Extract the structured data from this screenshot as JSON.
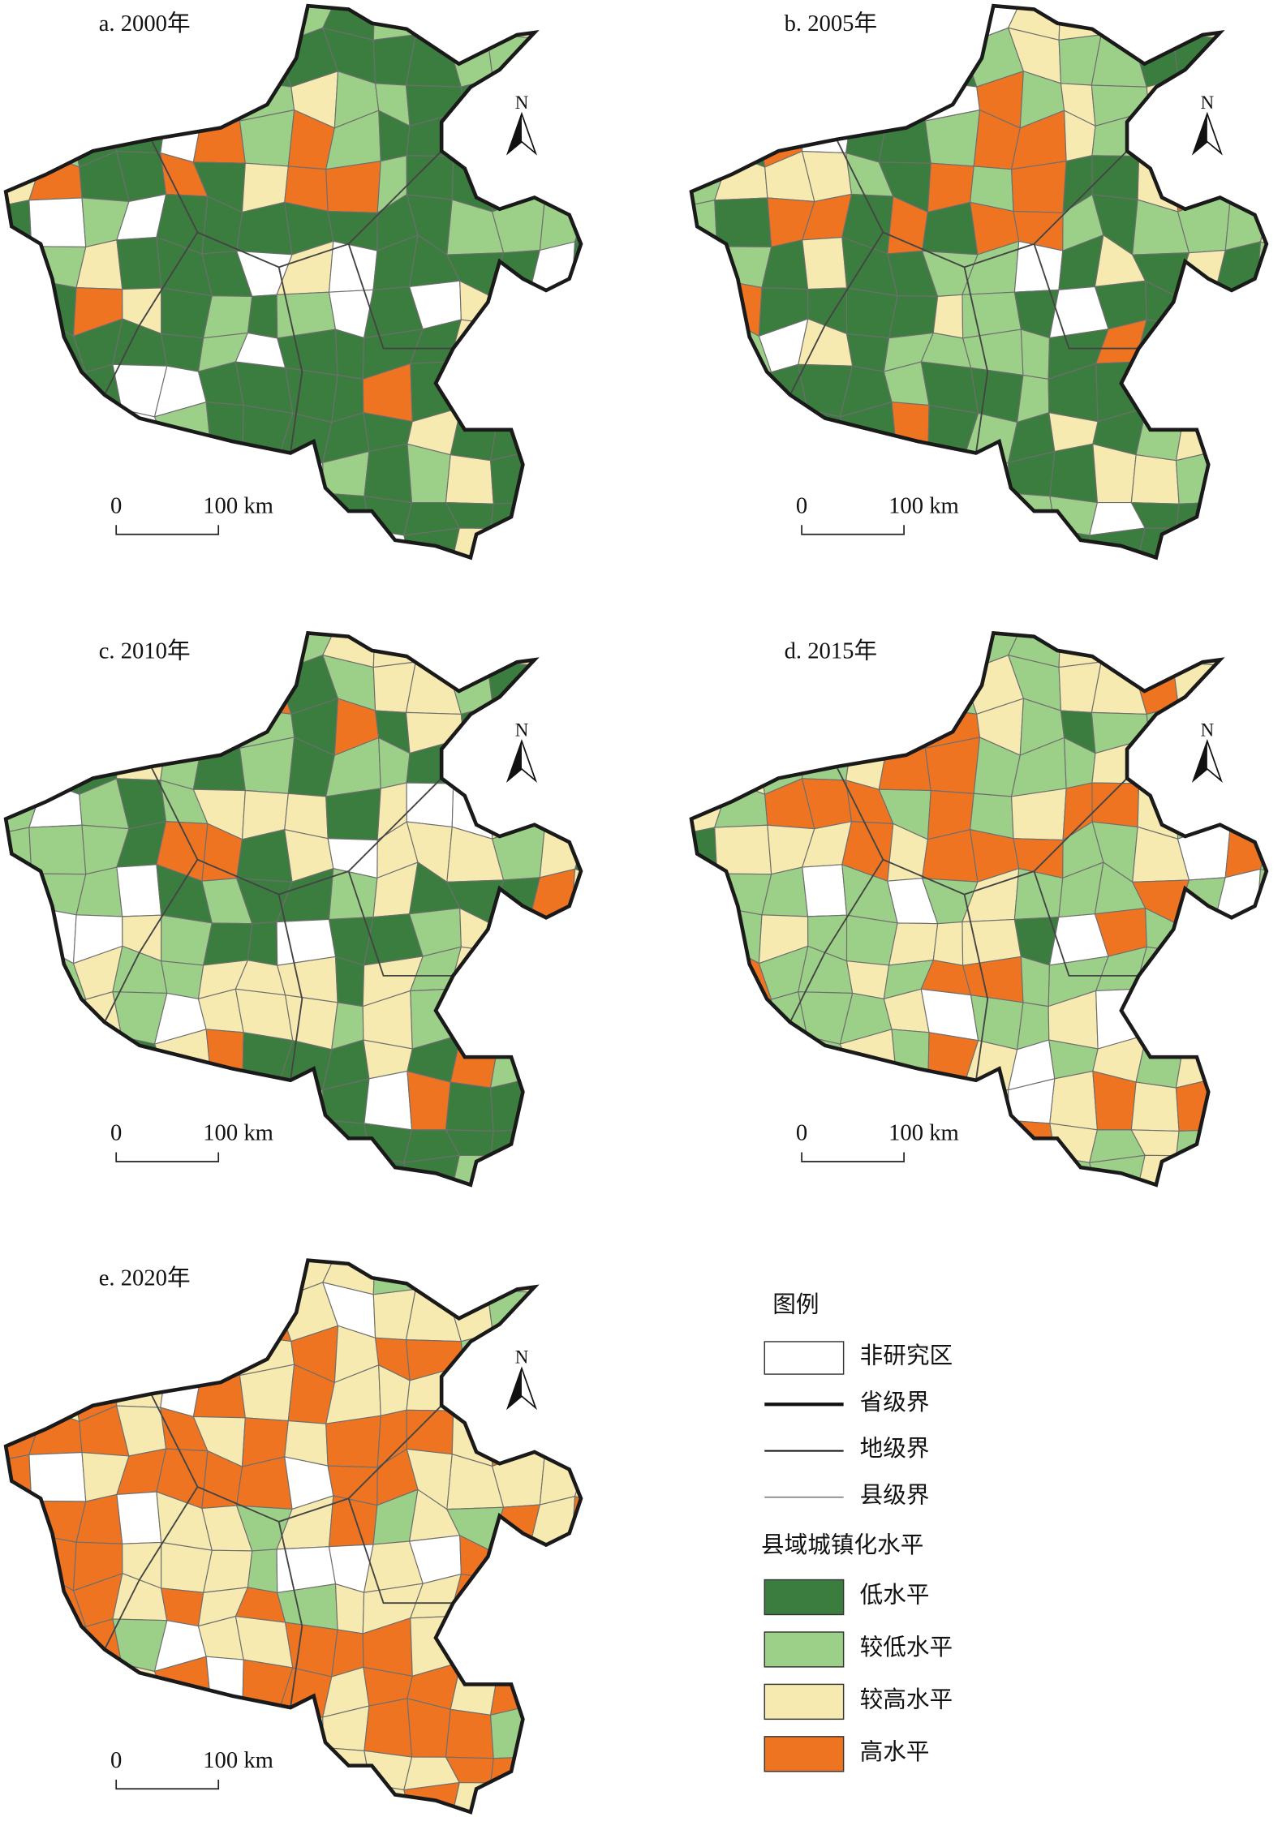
{
  "panels": [
    {
      "title": "a. 2000年",
      "scale": {
        "zero": "0",
        "length": "100 km"
      },
      "north": "N"
    },
    {
      "title": "b. 2005年",
      "scale": {
        "zero": "0",
        "length": "100 km"
      },
      "north": "N"
    },
    {
      "title": "c. 2010年",
      "scale": {
        "zero": "0",
        "length": "100 km"
      },
      "north": "N"
    },
    {
      "title": "d. 2015年",
      "scale": {
        "zero": "0",
        "length": "100 km"
      },
      "north": "N"
    },
    {
      "title": "e. 2020年",
      "scale": {
        "zero": "0",
        "length": "100 km"
      },
      "north": "N"
    }
  ],
  "legend": {
    "title": "图例",
    "boundaries": [
      {
        "label": "非研究区"
      },
      {
        "label": "省级界"
      },
      {
        "label": "地级界"
      },
      {
        "label": "县级界"
      }
    ],
    "level_title": "县域城镇化水平",
    "levels": [
      {
        "label": "低水平",
        "color": "#3b7d3e"
      },
      {
        "label": "较低水平",
        "color": "#9ccf88"
      },
      {
        "label": "较高水平",
        "color": "#f6eab0"
      },
      {
        "label": "高水平",
        "color": "#ee7421"
      }
    ]
  }
}
